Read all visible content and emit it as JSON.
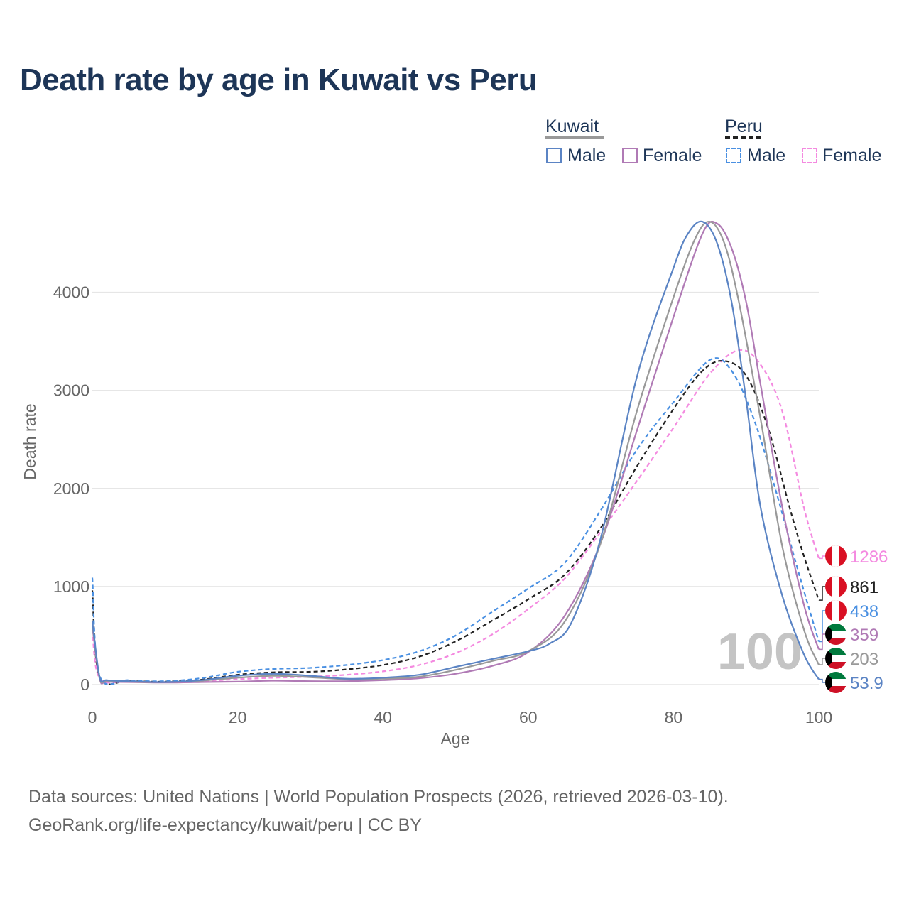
{
  "title": "Death rate by age in Kuwait vs Peru",
  "legend": {
    "groups": [
      {
        "name": "Kuwait",
        "underline_color": "#999999",
        "dashed": false,
        "items": [
          {
            "label": "Male",
            "color": "#5b84c4"
          },
          {
            "label": "Female",
            "color": "#b07ab5"
          }
        ]
      },
      {
        "name": "Peru",
        "underline_color": "#222222",
        "dashed": true,
        "items": [
          {
            "label": "Male",
            "color": "#4a90e2"
          },
          {
            "label": "Female",
            "color": "#f48ae0"
          }
        ]
      }
    ]
  },
  "footer": {
    "line1": "Data sources: United Nations | World Population Prospects (2026, retrieved 2026-03-10).",
    "line2": "GeoRank.org/life-expectancy/kuwait/peru | CC BY"
  },
  "watermark": "100",
  "end_labels": [
    {
      "value": "1286",
      "color": "#f48ae0",
      "flag": "peru-flag-icon",
      "series": "Peru Female"
    },
    {
      "value": "861",
      "color": "#222222",
      "flag": "peru-flag-icon",
      "series": "Peru Total"
    },
    {
      "value": "438",
      "color": "#4a90e2",
      "flag": "peru-flag-icon",
      "series": "Peru Male"
    },
    {
      "value": "359",
      "color": "#b07ab5",
      "flag": "kuwait-flag-icon",
      "series": "Kuwait Female"
    },
    {
      "value": "203",
      "color": "#999999",
      "flag": "kuwait-flag-icon",
      "series": "Kuwait Total"
    },
    {
      "value": "53.9",
      "color": "#5b84c4",
      "flag": "kuwait-flag-icon",
      "series": "Kuwait Male"
    }
  ],
  "chart_data": {
    "type": "line",
    "title": "Death rate by age in Kuwait vs Peru",
    "xlabel": "Age",
    "ylabel": "Death rate",
    "xlim": [
      0,
      100
    ],
    "ylim": [
      0,
      4950
    ],
    "xticks": [
      0,
      20,
      40,
      60,
      80,
      100
    ],
    "yticks": [
      0,
      1000,
      2000,
      3000,
      4000
    ],
    "grid": true,
    "series": [
      {
        "name": "Peru Female",
        "color": "#f48ae0",
        "dashed": true,
        "x": [
          0,
          1,
          5,
          10,
          15,
          20,
          25,
          30,
          35,
          40,
          45,
          50,
          55,
          60,
          65,
          70,
          75,
          80,
          85,
          89,
          92,
          95,
          98,
          100
        ],
        "y": [
          560,
          65,
          35,
          25,
          35,
          55,
          70,
          80,
          100,
          135,
          200,
          320,
          510,
          770,
          1080,
          1560,
          2080,
          2620,
          3170,
          3410,
          3260,
          2780,
          1790,
          1286
        ]
      },
      {
        "name": "Peru Total",
        "color": "#222222",
        "dashed": true,
        "x": [
          0,
          1,
          5,
          10,
          15,
          20,
          25,
          30,
          35,
          40,
          45,
          50,
          55,
          60,
          65,
          70,
          75,
          80,
          84,
          87,
          90,
          93,
          96,
          98,
          100
        ],
        "y": [
          960,
          80,
          40,
          30,
          50,
          100,
          125,
          130,
          155,
          200,
          285,
          440,
          650,
          870,
          1120,
          1600,
          2230,
          2810,
          3200,
          3300,
          3150,
          2620,
          1800,
          1300,
          861
        ]
      },
      {
        "name": "Peru Male",
        "color": "#4a90e2",
        "dashed": true,
        "x": [
          0,
          1,
          5,
          10,
          15,
          20,
          25,
          30,
          35,
          40,
          45,
          50,
          55,
          60,
          65,
          70,
          75,
          80,
          85,
          88,
          91,
          94,
          97,
          100
        ],
        "y": [
          1090,
          90,
          45,
          35,
          65,
          130,
          160,
          170,
          200,
          250,
          340,
          500,
          740,
          980,
          1240,
          1780,
          2400,
          2880,
          3310,
          3200,
          2720,
          2000,
          1200,
          438
        ]
      },
      {
        "name": "Kuwait Female",
        "color": "#b07ab5",
        "dashed": false,
        "x": [
          0,
          1,
          2,
          5,
          10,
          15,
          20,
          25,
          30,
          35,
          40,
          45,
          50,
          55,
          60,
          65,
          70,
          75,
          80,
          84,
          86,
          88,
          90,
          92,
          95,
          98,
          100
        ],
        "y": [
          600,
          60,
          30,
          25,
          20,
          25,
          30,
          40,
          35,
          35,
          45,
          65,
          110,
          190,
          330,
          700,
          1450,
          2600,
          3750,
          4600,
          4700,
          4450,
          3900,
          3050,
          1800,
          800,
          359
        ]
      },
      {
        "name": "Kuwait Total",
        "color": "#999999",
        "dashed": false,
        "x": [
          0,
          1,
          2,
          5,
          10,
          15,
          20,
          25,
          30,
          35,
          40,
          45,
          50,
          55,
          60,
          65,
          70,
          75,
          80,
          83,
          85,
          87,
          89,
          92,
          95,
          98,
          100
        ],
        "y": [
          620,
          70,
          40,
          30,
          25,
          40,
          70,
          90,
          75,
          55,
          60,
          80,
          150,
          240,
          340,
          640,
          1450,
          2800,
          3950,
          4550,
          4720,
          4500,
          3900,
          2700,
          1400,
          550,
          203
        ]
      },
      {
        "name": "Kuwait Male",
        "color": "#5b84c4",
        "dashed": false,
        "x": [
          0,
          1,
          2,
          5,
          10,
          15,
          20,
          25,
          30,
          35,
          40,
          45,
          50,
          55,
          60,
          63,
          66,
          70,
          75,
          80,
          82,
          84,
          86,
          88,
          90,
          92,
          95,
          98,
          100
        ],
        "y": [
          650,
          80,
          45,
          35,
          25,
          45,
          90,
          110,
          90,
          60,
          70,
          100,
          180,
          260,
          340,
          420,
          640,
          1500,
          3150,
          4250,
          4600,
          4720,
          4500,
          3900,
          2900,
          1800,
          900,
          300,
          53.9
        ]
      }
    ]
  }
}
